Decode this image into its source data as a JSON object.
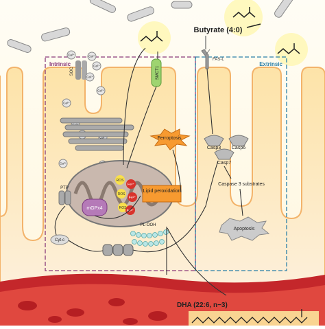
{
  "butyrate": "Butyrate (4:0)",
  "dha": "DHA (22:6, n−3)",
  "regions": {
    "intrinsic": "Intrinsic",
    "extrinsic": "Extrinsic"
  },
  "labels": {
    "soc": "SOC",
    "ca": "Ca²⁺",
    "smct1": "SMCT1",
    "fasl": "FAS-L",
    "ferroptosis": "Ferroptosis",
    "lipid": "Lipid peroxidation",
    "ros": "ROS",
    "fe": "Fe²⁺",
    "plooh": "PL-OOH",
    "mgpx4": "mGPx4",
    "ptp": "PTP",
    "cytc": "Cyt-c",
    "casp3": "Casp3",
    "casp6": "Casp6",
    "casp7": "Casp7",
    "substrates": "Caspase 3 substrates",
    "apoptosis": "Apoptosis"
  }
}
